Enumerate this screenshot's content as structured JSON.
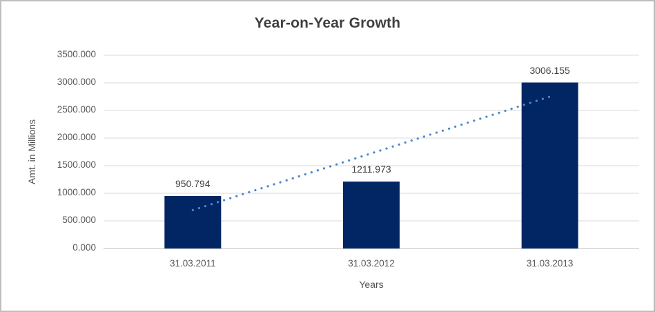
{
  "chart_data": {
    "type": "bar",
    "title": "Year-on-Year Growth",
    "categories": [
      "31.03.2011",
      "31.03.2012",
      "31.03.2013"
    ],
    "values": [
      950.794,
      1211.973,
      3006.155
    ],
    "data_labels": [
      "950.794",
      "1211.973",
      "3006.155"
    ],
    "xlabel": "Years",
    "ylabel": "Amt. in Millions",
    "ylim": [
      0,
      3500
    ],
    "ytick_step": 500,
    "ytick_labels": [
      "0.000",
      "500.000",
      "1000.000",
      "1500.000",
      "2000.000",
      "2500.000",
      "3000.000",
      "3500.000"
    ],
    "grid": true,
    "legend": "none",
    "trendline": {
      "type": "linear",
      "style": "dotted"
    },
    "colors": {
      "bar": "#022664",
      "trendline": "#4e86c9",
      "gridline": "#d9d9d9",
      "axis_line": "#c9c9c9",
      "title_text": "#3f3f3f",
      "label_text": "#404040",
      "tick_text": "#595959",
      "axis_title_text": "#525252",
      "border": "#bdbdbd",
      "background": "#ffffff"
    }
  }
}
